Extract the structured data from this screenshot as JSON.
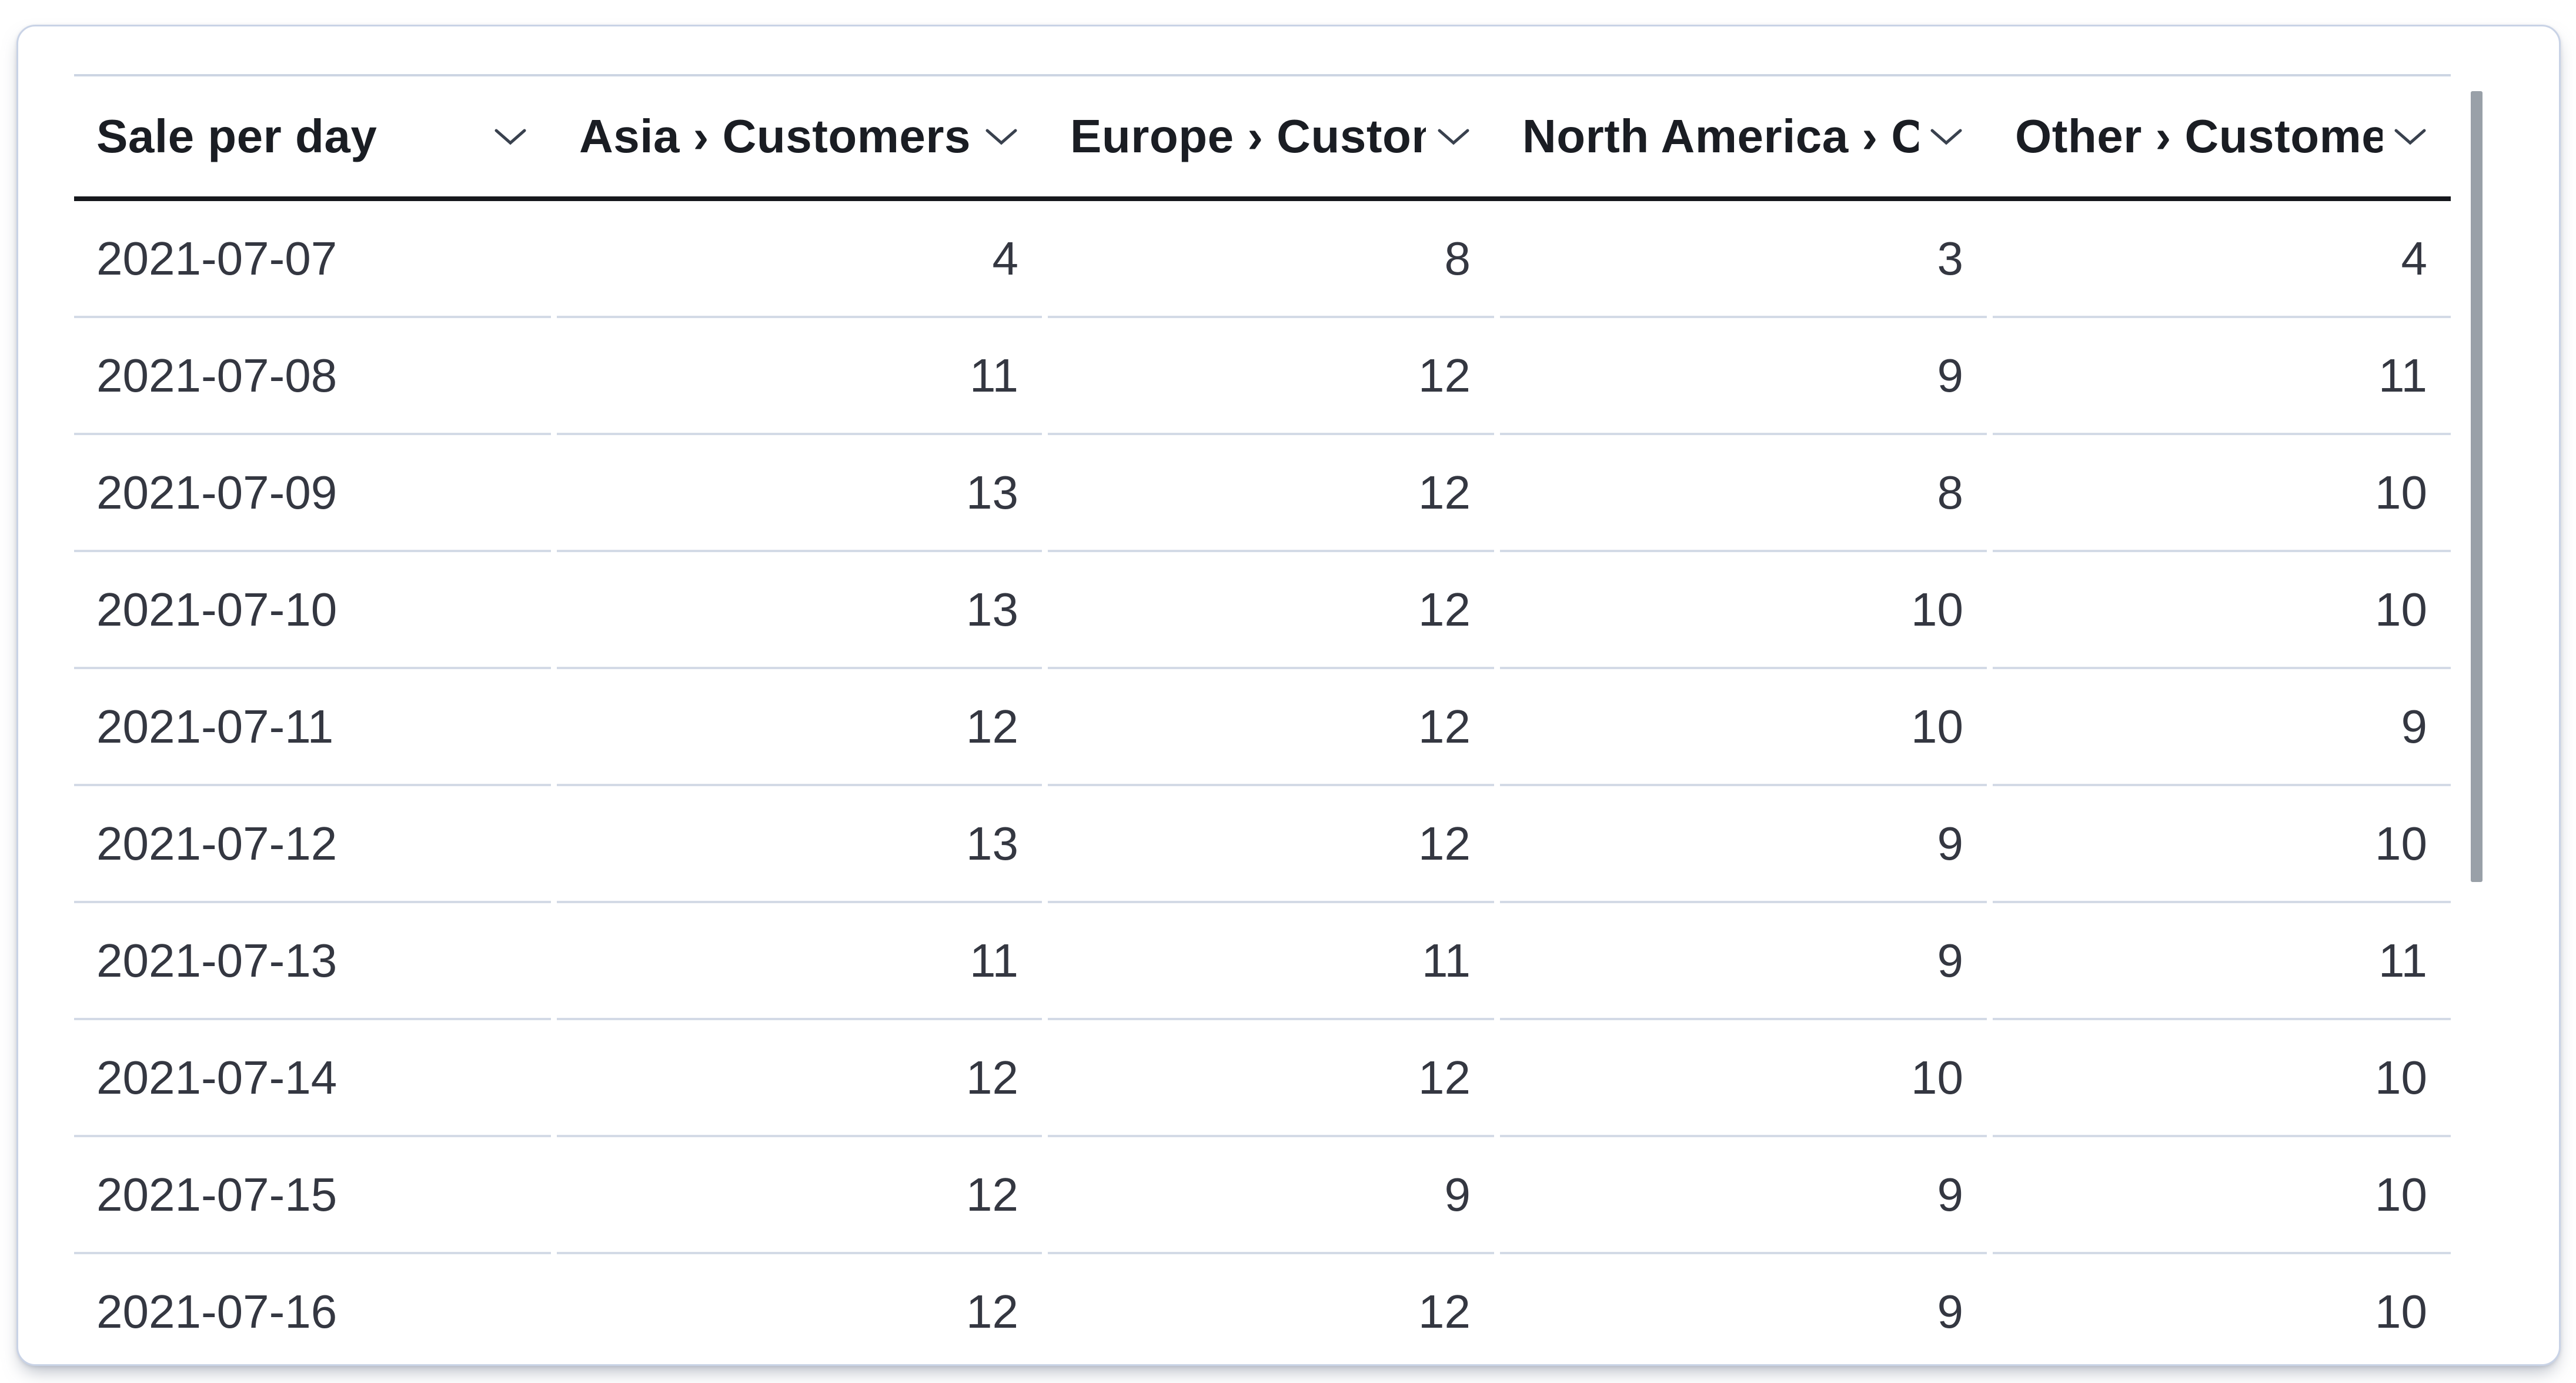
{
  "panel": {
    "table": {
      "columns": [
        {
          "id": "date",
          "label": "Sale per day",
          "align": "left"
        },
        {
          "id": "asia",
          "label": "Asia › Customers",
          "align": "right"
        },
        {
          "id": "europe",
          "label": "Europe › Customers",
          "align": "right"
        },
        {
          "id": "na",
          "label": "North America › Customers",
          "align": "right"
        },
        {
          "id": "other",
          "label": "Other › Customers",
          "align": "right"
        }
      ],
      "rows": [
        {
          "date": "2021-07-07",
          "values": [
            4,
            8,
            3,
            4
          ]
        },
        {
          "date": "2021-07-08",
          "values": [
            11,
            12,
            9,
            11
          ]
        },
        {
          "date": "2021-07-09",
          "values": [
            13,
            12,
            8,
            10
          ]
        },
        {
          "date": "2021-07-10",
          "values": [
            13,
            12,
            10,
            10
          ]
        },
        {
          "date": "2021-07-11",
          "values": [
            12,
            12,
            10,
            9
          ]
        },
        {
          "date": "2021-07-12",
          "values": [
            13,
            12,
            9,
            10
          ]
        },
        {
          "date": "2021-07-13",
          "values": [
            11,
            11,
            9,
            11
          ]
        },
        {
          "date": "2021-07-14",
          "values": [
            12,
            12,
            10,
            10
          ]
        },
        {
          "date": "2021-07-15",
          "values": [
            12,
            9,
            9,
            10
          ]
        },
        {
          "date": "2021-07-16",
          "values": [
            12,
            12,
            9,
            10
          ]
        }
      ]
    },
    "icons": {
      "header_sort": "chevron-down"
    },
    "colors": {
      "header_text": "#1a1d23",
      "body_text": "#343741",
      "header_underline": "#16181d",
      "row_divider": "#d3dae6",
      "card_border": "#c9d3e6",
      "chevron": "#39414e",
      "scrollbar_thumb": "#99a0a8"
    }
  },
  "chart_data": {
    "type": "table",
    "title": "Sale per day",
    "categories": [
      "2021-07-07",
      "2021-07-08",
      "2021-07-09",
      "2021-07-10",
      "2021-07-11",
      "2021-07-12",
      "2021-07-13",
      "2021-07-14",
      "2021-07-15",
      "2021-07-16"
    ],
    "series": [
      {
        "name": "Asia › Customers",
        "values": [
          4,
          11,
          13,
          13,
          12,
          13,
          11,
          12,
          12,
          12
        ]
      },
      {
        "name": "Europe › Customers",
        "values": [
          8,
          12,
          12,
          12,
          12,
          12,
          11,
          12,
          9,
          12
        ]
      },
      {
        "name": "North America › Customers",
        "values": [
          3,
          9,
          8,
          10,
          10,
          9,
          9,
          10,
          9,
          9
        ]
      },
      {
        "name": "Other › Customers",
        "values": [
          4,
          11,
          10,
          10,
          9,
          10,
          11,
          10,
          10,
          10
        ]
      }
    ]
  }
}
